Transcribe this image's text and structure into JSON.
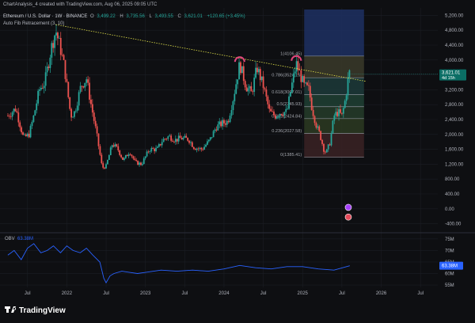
{
  "header": {
    "credit": "ChartAnalysis_4 created with TradingView.com, Aug 06, 2025 09:05 UTC",
    "symbol": "Ethereum / U.S. Dollar · 1W · BINANCE",
    "ohlc": [
      {
        "key": "O",
        "value": "3,499.22"
      },
      {
        "key": "H",
        "value": "3,735.56"
      },
      {
        "key": "L",
        "value": "3,493.55"
      },
      {
        "key": "C",
        "value": "3,621.01"
      }
    ],
    "change": "+120.65 (+3.45%)",
    "indicator": "Auto Fib Retracement (3, 10)"
  },
  "colors": {
    "background": "#0e0f12",
    "up": "#26a69a",
    "down": "#ef5350",
    "price_badge": "#0b6e65",
    "obv_line": "#2962ff",
    "trendline": "#e3e34a",
    "text": "#b2b5be",
    "grid": "#1b1e24"
  },
  "chart_data": [
    {
      "type": "candlestick",
      "title": "Ethereum / U.S. Dollar · 1W · BINANCE",
      "ylim": [
        -600,
        5400
      ],
      "y_ticks": [
        "5,200.00",
        "4,800.00",
        "4,400.00",
        "4,000.00",
        "3,600.00",
        "3,200.00",
        "2,800.00",
        "2,400.00",
        "2,000.00",
        "1,600.00",
        "1,200.00",
        "800.00",
        "400.00",
        "0.00",
        "-400.00"
      ],
      "y_tick_values": [
        5200,
        4800,
        4400,
        4000,
        3600,
        3200,
        2800,
        2400,
        2000,
        1600,
        1200,
        800,
        400,
        0,
        -400
      ],
      "x_ticks": [
        {
          "label": "Jul",
          "t": 2021.5
        },
        {
          "label": "2022",
          "t": 2022.0
        },
        {
          "label": "Jul",
          "t": 2022.5
        },
        {
          "label": "2023",
          "t": 2023.0
        },
        {
          "label": "Jul",
          "t": 2023.5
        },
        {
          "label": "2024",
          "t": 2024.0
        },
        {
          "label": "Jul",
          "t": 2024.5
        },
        {
          "label": "2025",
          "t": 2025.0
        },
        {
          "label": "Jul",
          "t": 2025.5
        },
        {
          "label": "2026",
          "t": 2026.0
        },
        {
          "label": "Jul",
          "t": 2026.5
        }
      ],
      "price_path": [
        [
          2021.25,
          2500
        ],
        [
          2021.35,
          2700
        ],
        [
          2021.45,
          1900
        ],
        [
          2021.52,
          2000
        ],
        [
          2021.58,
          2500
        ],
        [
          2021.65,
          3200
        ],
        [
          2021.72,
          3400
        ],
        [
          2021.8,
          4300
        ],
        [
          2021.86,
          4800
        ],
        [
          2021.92,
          4300
        ],
        [
          2021.97,
          3800
        ],
        [
          2022.05,
          2500
        ],
        [
          2022.1,
          2600
        ],
        [
          2022.18,
          3300
        ],
        [
          2022.25,
          3500
        ],
        [
          2022.3,
          2900
        ],
        [
          2022.38,
          2000
        ],
        [
          2022.45,
          1100
        ],
        [
          2022.5,
          1150
        ],
        [
          2022.58,
          1750
        ],
        [
          2022.65,
          1600
        ],
        [
          2022.72,
          1300
        ],
        [
          2022.8,
          1550
        ],
        [
          2022.87,
          1250
        ],
        [
          2022.95,
          1200
        ],
        [
          2023.05,
          1600
        ],
        [
          2023.15,
          1600
        ],
        [
          2023.22,
          1850
        ],
        [
          2023.3,
          1950
        ],
        [
          2023.38,
          1850
        ],
        [
          2023.45,
          1900
        ],
        [
          2023.55,
          1870
        ],
        [
          2023.62,
          1650
        ],
        [
          2023.72,
          1600
        ],
        [
          2023.82,
          1850
        ],
        [
          2023.9,
          2200
        ],
        [
          2023.98,
          2300
        ],
        [
          2024.05,
          2350
        ],
        [
          2024.12,
          3000
        ],
        [
          2024.2,
          3900
        ],
        [
          2024.28,
          3300
        ],
        [
          2024.35,
          3100
        ],
        [
          2024.42,
          3800
        ],
        [
          2024.5,
          3300
        ],
        [
          2024.58,
          2600
        ],
        [
          2024.65,
          2500
        ],
        [
          2024.72,
          2600
        ],
        [
          2024.8,
          2600
        ],
        [
          2024.86,
          3300
        ],
        [
          2024.92,
          3900
        ],
        [
          2024.97,
          3600
        ],
        [
          2025.02,
          3300
        ],
        [
          2025.08,
          3200
        ],
        [
          2025.12,
          2700
        ],
        [
          2025.18,
          2200
        ],
        [
          2025.22,
          2000
        ],
        [
          2025.27,
          1600
        ],
        [
          2025.3,
          1500
        ],
        [
          2025.35,
          1800
        ],
        [
          2025.4,
          2500
        ],
        [
          2025.45,
          2600
        ],
        [
          2025.5,
          2500
        ],
        [
          2025.55,
          3000
        ],
        [
          2025.57,
          3400
        ],
        [
          2025.6,
          3700
        ],
        [
          2025.6,
          3621
        ]
      ],
      "fib_levels": [
        {
          "ratio": "1",
          "value": 4106.45,
          "label": "1(4106.45)"
        },
        {
          "ratio": "0.786",
          "value": 3524.15,
          "label": "0.786(3524.15)"
        },
        {
          "ratio": "0.618",
          "value": 3067.01,
          "label": "0.618(3067.01)"
        },
        {
          "ratio": "0.5",
          "value": 2745.93,
          "label": "0.5(2745.93)"
        },
        {
          "ratio": "0.382",
          "value": 2424.84,
          "label": "0.382(2424.84)"
        },
        {
          "ratio": "0.236",
          "value": 2027.58,
          "label": "0.236(2027.58)"
        },
        {
          "ratio": "0",
          "value": 1385.41,
          "label": "0(1385.41)"
        }
      ],
      "fib_zone_colors": [
        "#1a2a3a",
        "#3a3a2a",
        "#1c3a3a",
        "#1f3f34",
        "#243c2a",
        "#2c3a22",
        "#3a2224"
      ],
      "fib_upper_band_color": "#1d2f5e",
      "fib_start": 2025.02,
      "fib_end": 2025.6,
      "trendline": {
        "from": [
          2021.86,
          4950
        ],
        "to": [
          2025.8,
          3430
        ]
      },
      "tops": [
        [
          2024.2,
          3950
        ],
        [
          2024.92,
          3980
        ]
      ],
      "current_price": {
        "value": 3621.01,
        "label": "3,621.01",
        "countdown": "4d 15h"
      },
      "events": [
        {
          "t": 2025.35,
          "value": 40,
          "color": "#a641ff"
        },
        {
          "t": 2025.35,
          "value": -220,
          "color": "#e34a5a"
        }
      ]
    },
    {
      "type": "line",
      "title": "OBV",
      "series": [
        {
          "name": "OBV",
          "current": "63.38M"
        }
      ],
      "ylim": [
        54,
        77
      ],
      "y_ticks": [
        "75M",
        "70M",
        "65M",
        "60M",
        "55M"
      ],
      "y_tick_values": [
        75,
        70,
        65,
        60,
        55
      ],
      "x": [
        2021.25,
        2021.33,
        2021.42,
        2021.5,
        2021.58,
        2021.67,
        2021.75,
        2021.83,
        2021.92,
        2022.0,
        2022.08,
        2022.17,
        2022.25,
        2022.33,
        2022.42,
        2022.47,
        2022.5,
        2022.55,
        2022.6,
        2022.7,
        2022.8,
        2022.9,
        2023.0,
        2023.2,
        2023.4,
        2023.6,
        2023.8,
        2024.0,
        2024.2,
        2024.4,
        2024.6,
        2024.8,
        2025.0,
        2025.2,
        2025.4,
        2025.6
      ],
      "values": [
        68,
        70,
        66,
        71,
        73,
        69,
        70,
        72,
        69,
        72,
        70,
        69,
        71,
        68,
        65,
        58,
        56,
        59,
        60,
        61,
        60.5,
        60,
        60.5,
        61.5,
        61,
        61.5,
        61,
        62,
        63.5,
        62.5,
        62,
        63,
        63,
        62,
        61.5,
        63.38
      ]
    }
  ],
  "footer": {
    "brand": "TradingView"
  }
}
